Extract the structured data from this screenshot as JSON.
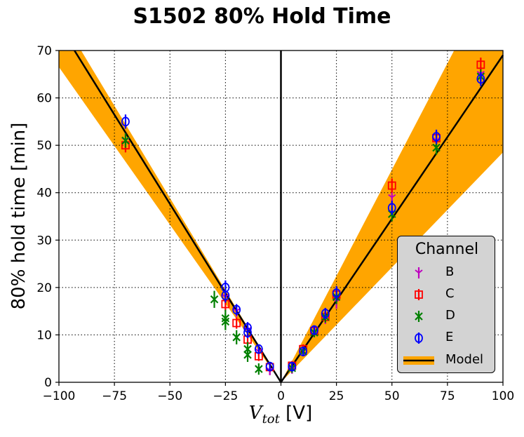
{
  "chart_data": {
    "type": "scatter",
    "title": "S1502 80% Hold Time",
    "xlabel_main": "V",
    "xlabel_sub": "tot",
    "xlabel_unit": " [V]",
    "ylabel": "80% hold time [min]",
    "xlim": [
      -100,
      100
    ],
    "ylim": [
      0,
      70
    ],
    "xticks": [
      -100,
      -75,
      -50,
      -25,
      0,
      25,
      50,
      75,
      100
    ],
    "xtick_labels": [
      "−100",
      "−75",
      "−50",
      "−25",
      "0",
      "25",
      "50",
      "75",
      "100"
    ],
    "yticks": [
      0,
      10,
      20,
      30,
      40,
      50,
      60,
      70
    ],
    "ytick_labels": [
      "0",
      "10",
      "20",
      "30",
      "40",
      "50",
      "60",
      "70"
    ],
    "grid": true,
    "legend_title": "Channel",
    "legend_position": "lower-right",
    "series": [
      {
        "name": "B",
        "color": "#bf00bf",
        "marker": "tri_down",
        "points": [
          {
            "x": -70,
            "y": 51,
            "err": 1.5
          },
          {
            "x": -25,
            "y": 18,
            "err": 1.5
          },
          {
            "x": -20,
            "y": 15,
            "err": 1.2
          },
          {
            "x": -15,
            "y": 11,
            "err": 1.2
          },
          {
            "x": -10,
            "y": 6.5,
            "err": 1.0
          },
          {
            "x": -5,
            "y": 2.5,
            "err": 1.0
          },
          {
            "x": 5,
            "y": 2.8,
            "err": 1.0
          },
          {
            "x": 10,
            "y": 6.5,
            "err": 1.0
          },
          {
            "x": 15,
            "y": 10.5,
            "err": 1.0
          },
          {
            "x": 20,
            "y": 13.5,
            "err": 1.2
          },
          {
            "x": 25,
            "y": 17,
            "err": 1.5
          },
          {
            "x": 50,
            "y": 39,
            "err": 1.5
          },
          {
            "x": 70,
            "y": 51,
            "err": 1.5
          },
          {
            "x": 90,
            "y": 65,
            "err": 1.5
          }
        ]
      },
      {
        "name": "C",
        "color": "#ff0000",
        "marker": "square",
        "points": [
          {
            "x": -70,
            "y": 50,
            "err": 1.5
          },
          {
            "x": -25,
            "y": 16.5,
            "err": 1.5
          },
          {
            "x": -20,
            "y": 12.5,
            "err": 1.2
          },
          {
            "x": -15,
            "y": 9,
            "err": 1.2
          },
          {
            "x": -10,
            "y": 5.5,
            "err": 1.0
          },
          {
            "x": -5,
            "y": 3.2,
            "err": 1.0
          },
          {
            "x": 5,
            "y": 3.5,
            "err": 1.0
          },
          {
            "x": 10,
            "y": 7,
            "err": 1.0
          },
          {
            "x": 15,
            "y": 10.8,
            "err": 1.0
          },
          {
            "x": 20,
            "y": 13.8,
            "err": 1.2
          },
          {
            "x": 25,
            "y": 18.5,
            "err": 1.5
          },
          {
            "x": 50,
            "y": 41.5,
            "err": 1.5
          },
          {
            "x": 70,
            "y": 51.5,
            "err": 1.5
          },
          {
            "x": 90,
            "y": 67,
            "err": 1.5
          }
        ]
      },
      {
        "name": "D",
        "color": "#008000",
        "marker": "x",
        "points": [
          {
            "x": -70,
            "y": 51,
            "err": 1.5
          },
          {
            "x": -30,
            "y": 17.5,
            "err": 1.8
          },
          {
            "x": -25,
            "y": 13.5,
            "err": 1.8
          },
          {
            "x": -25,
            "y": 12.8,
            "err": 1.8
          },
          {
            "x": -20,
            "y": 9.5,
            "err": 1.5
          },
          {
            "x": -15,
            "y": 7,
            "err": 1.5
          },
          {
            "x": -15,
            "y": 5.8,
            "err": 1.5
          },
          {
            "x": -10,
            "y": 2.8,
            "err": 1.2
          },
          {
            "x": 5,
            "y": 3,
            "err": 1.0
          },
          {
            "x": 10,
            "y": 6.5,
            "err": 1.0
          },
          {
            "x": 15,
            "y": 10.5,
            "err": 1.0
          },
          {
            "x": 20,
            "y": 13.8,
            "err": 1.2
          },
          {
            "x": 25,
            "y": 18,
            "err": 1.5
          },
          {
            "x": 50,
            "y": 35.5,
            "err": 1.5
          },
          {
            "x": 70,
            "y": 49.5,
            "err": 1.5
          },
          {
            "x": 90,
            "y": 64.5,
            "err": 1.5
          }
        ]
      },
      {
        "name": "E",
        "color": "#0000ff",
        "marker": "circle",
        "points": [
          {
            "x": -70,
            "y": 55,
            "err": 1.5
          },
          {
            "x": -25,
            "y": 20,
            "err": 1.5
          },
          {
            "x": -25,
            "y": 18.3,
            "err": 1.5
          },
          {
            "x": -20,
            "y": 15.3,
            "err": 1.2
          },
          {
            "x": -15,
            "y": 11.5,
            "err": 1.2
          },
          {
            "x": -15,
            "y": 10.5,
            "err": 1.2
          },
          {
            "x": -10,
            "y": 7,
            "err": 1.0
          },
          {
            "x": -5,
            "y": 3.3,
            "err": 1.0
          },
          {
            "x": 5,
            "y": 3.3,
            "err": 1.0
          },
          {
            "x": 10,
            "y": 6.5,
            "err": 1.0
          },
          {
            "x": 15,
            "y": 11,
            "err": 1.0
          },
          {
            "x": 20,
            "y": 14.5,
            "err": 1.2
          },
          {
            "x": 25,
            "y": 18.8,
            "err": 1.5
          },
          {
            "x": 50,
            "y": 36.8,
            "err": 1.5
          },
          {
            "x": 70,
            "y": 51.8,
            "err": 1.5
          },
          {
            "x": 90,
            "y": 64,
            "err": 1.5
          }
        ]
      }
    ],
    "model": {
      "name": "Model",
      "color": "#000000",
      "points": [
        [
          -93,
          70
        ],
        [
          0,
          0
        ],
        [
          100,
          69
        ]
      ]
    },
    "uncertainty_band": {
      "color": "#ffa500",
      "left_upper": [
        [
          -100,
          70
        ],
        [
          -90,
          70
        ],
        [
          0,
          0
        ]
      ],
      "left_lower": [
        [
          0,
          0
        ],
        [
          -100,
          66.5
        ]
      ],
      "right_upper": [
        [
          0,
          0
        ],
        [
          78,
          70
        ],
        [
          100,
          70
        ]
      ],
      "right_lower": [
        [
          100,
          48.5
        ],
        [
          0,
          0
        ]
      ]
    }
  }
}
